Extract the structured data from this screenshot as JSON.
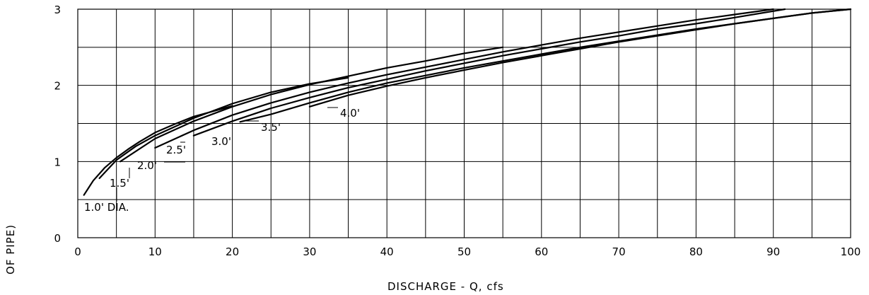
{
  "chart_data": {
    "type": "line",
    "title": "",
    "xlabel": "DISCHARGE - Q, cfs",
    "ylabel": "OF PIPE)",
    "xlim": [
      0,
      100
    ],
    "ylim": [
      0,
      3
    ],
    "x_ticks": [
      0,
      10,
      20,
      30,
      40,
      50,
      60,
      70,
      80,
      90,
      100
    ],
    "x_tick_labels": [
      "0",
      "10",
      "20",
      "30",
      "40",
      "50",
      "60",
      "70",
      "80",
      "90",
      "100"
    ],
    "y_ticks": [
      0,
      1,
      2,
      3
    ],
    "y_tick_labels": [
      "0",
      "1",
      "2",
      "3"
    ],
    "grid": true,
    "x_minor_step": 5,
    "y_minor_step": 0.5,
    "series": [
      {
        "name": "1.0' DIA.",
        "x": [
          0.8,
          2,
          3.5,
          5,
          6.5,
          8,
          10,
          12.5,
          15,
          17.5,
          20
        ],
        "y": [
          0.56,
          0.75,
          0.92,
          1.05,
          1.16,
          1.26,
          1.38,
          1.49,
          1.59,
          1.66,
          1.73
        ]
      },
      {
        "name": "1.5'",
        "x": [
          2.8,
          5,
          7.5,
          10,
          15,
          20,
          25,
          30,
          35
        ],
        "y": [
          0.78,
          1.02,
          1.2,
          1.34,
          1.57,
          1.76,
          1.91,
          2.02,
          2.1
        ]
      },
      {
        "name": "2.0'",
        "x": [
          5.5,
          10,
          15,
          20,
          25,
          30,
          35,
          40,
          45,
          50,
          55
        ],
        "y": [
          1.0,
          1.3,
          1.53,
          1.72,
          1.88,
          2.01,
          2.12,
          2.23,
          2.32,
          2.42,
          2.5
        ]
      },
      {
        "name": "2.5'",
        "x": [
          10,
          15,
          20,
          25,
          30,
          35,
          40,
          45,
          50,
          55,
          60,
          65,
          70,
          75,
          80,
          85,
          90
        ],
        "y": [
          1.18,
          1.41,
          1.61,
          1.77,
          1.91,
          2.03,
          2.14,
          2.24,
          2.34,
          2.44,
          2.53,
          2.62,
          2.7,
          2.78,
          2.86,
          2.93,
          3.0
        ]
      },
      {
        "name": "3.0'",
        "x": [
          15,
          20,
          25,
          30,
          35,
          40,
          45,
          50,
          55,
          60,
          65,
          70,
          75,
          80,
          85,
          91.5
        ],
        "y": [
          1.34,
          1.53,
          1.7,
          1.84,
          1.97,
          2.08,
          2.19,
          2.29,
          2.39,
          2.48,
          2.57,
          2.65,
          2.74,
          2.81,
          2.89,
          3.0
        ]
      },
      {
        "name": "3.5'",
        "x": [
          21,
          25,
          30,
          35,
          40,
          45,
          50,
          55,
          60,
          65,
          70,
          75,
          80,
          85,
          90,
          95,
          100
        ],
        "y": [
          1.52,
          1.62,
          1.77,
          1.91,
          2.03,
          2.13,
          2.23,
          2.32,
          2.41,
          2.5,
          2.58,
          2.66,
          2.74,
          2.81,
          2.88,
          2.95,
          3.0
        ]
      },
      {
        "name": "4.0'",
        "x": [
          30,
          35,
          40,
          45,
          50,
          55,
          60,
          65,
          70,
          75,
          80,
          85,
          90,
          95,
          100
        ],
        "y": [
          1.72,
          1.87,
          1.99,
          2.1,
          2.2,
          2.3,
          2.39,
          2.48,
          2.57,
          2.65,
          2.73,
          2.81,
          2.88,
          2.95,
          3.0
        ]
      }
    ],
    "series_labels": [
      "1.0' DIA.",
      "1.5'",
      "2.0'",
      "2.5'",
      "3.0'",
      "3.5'",
      "4.0'"
    ]
  }
}
